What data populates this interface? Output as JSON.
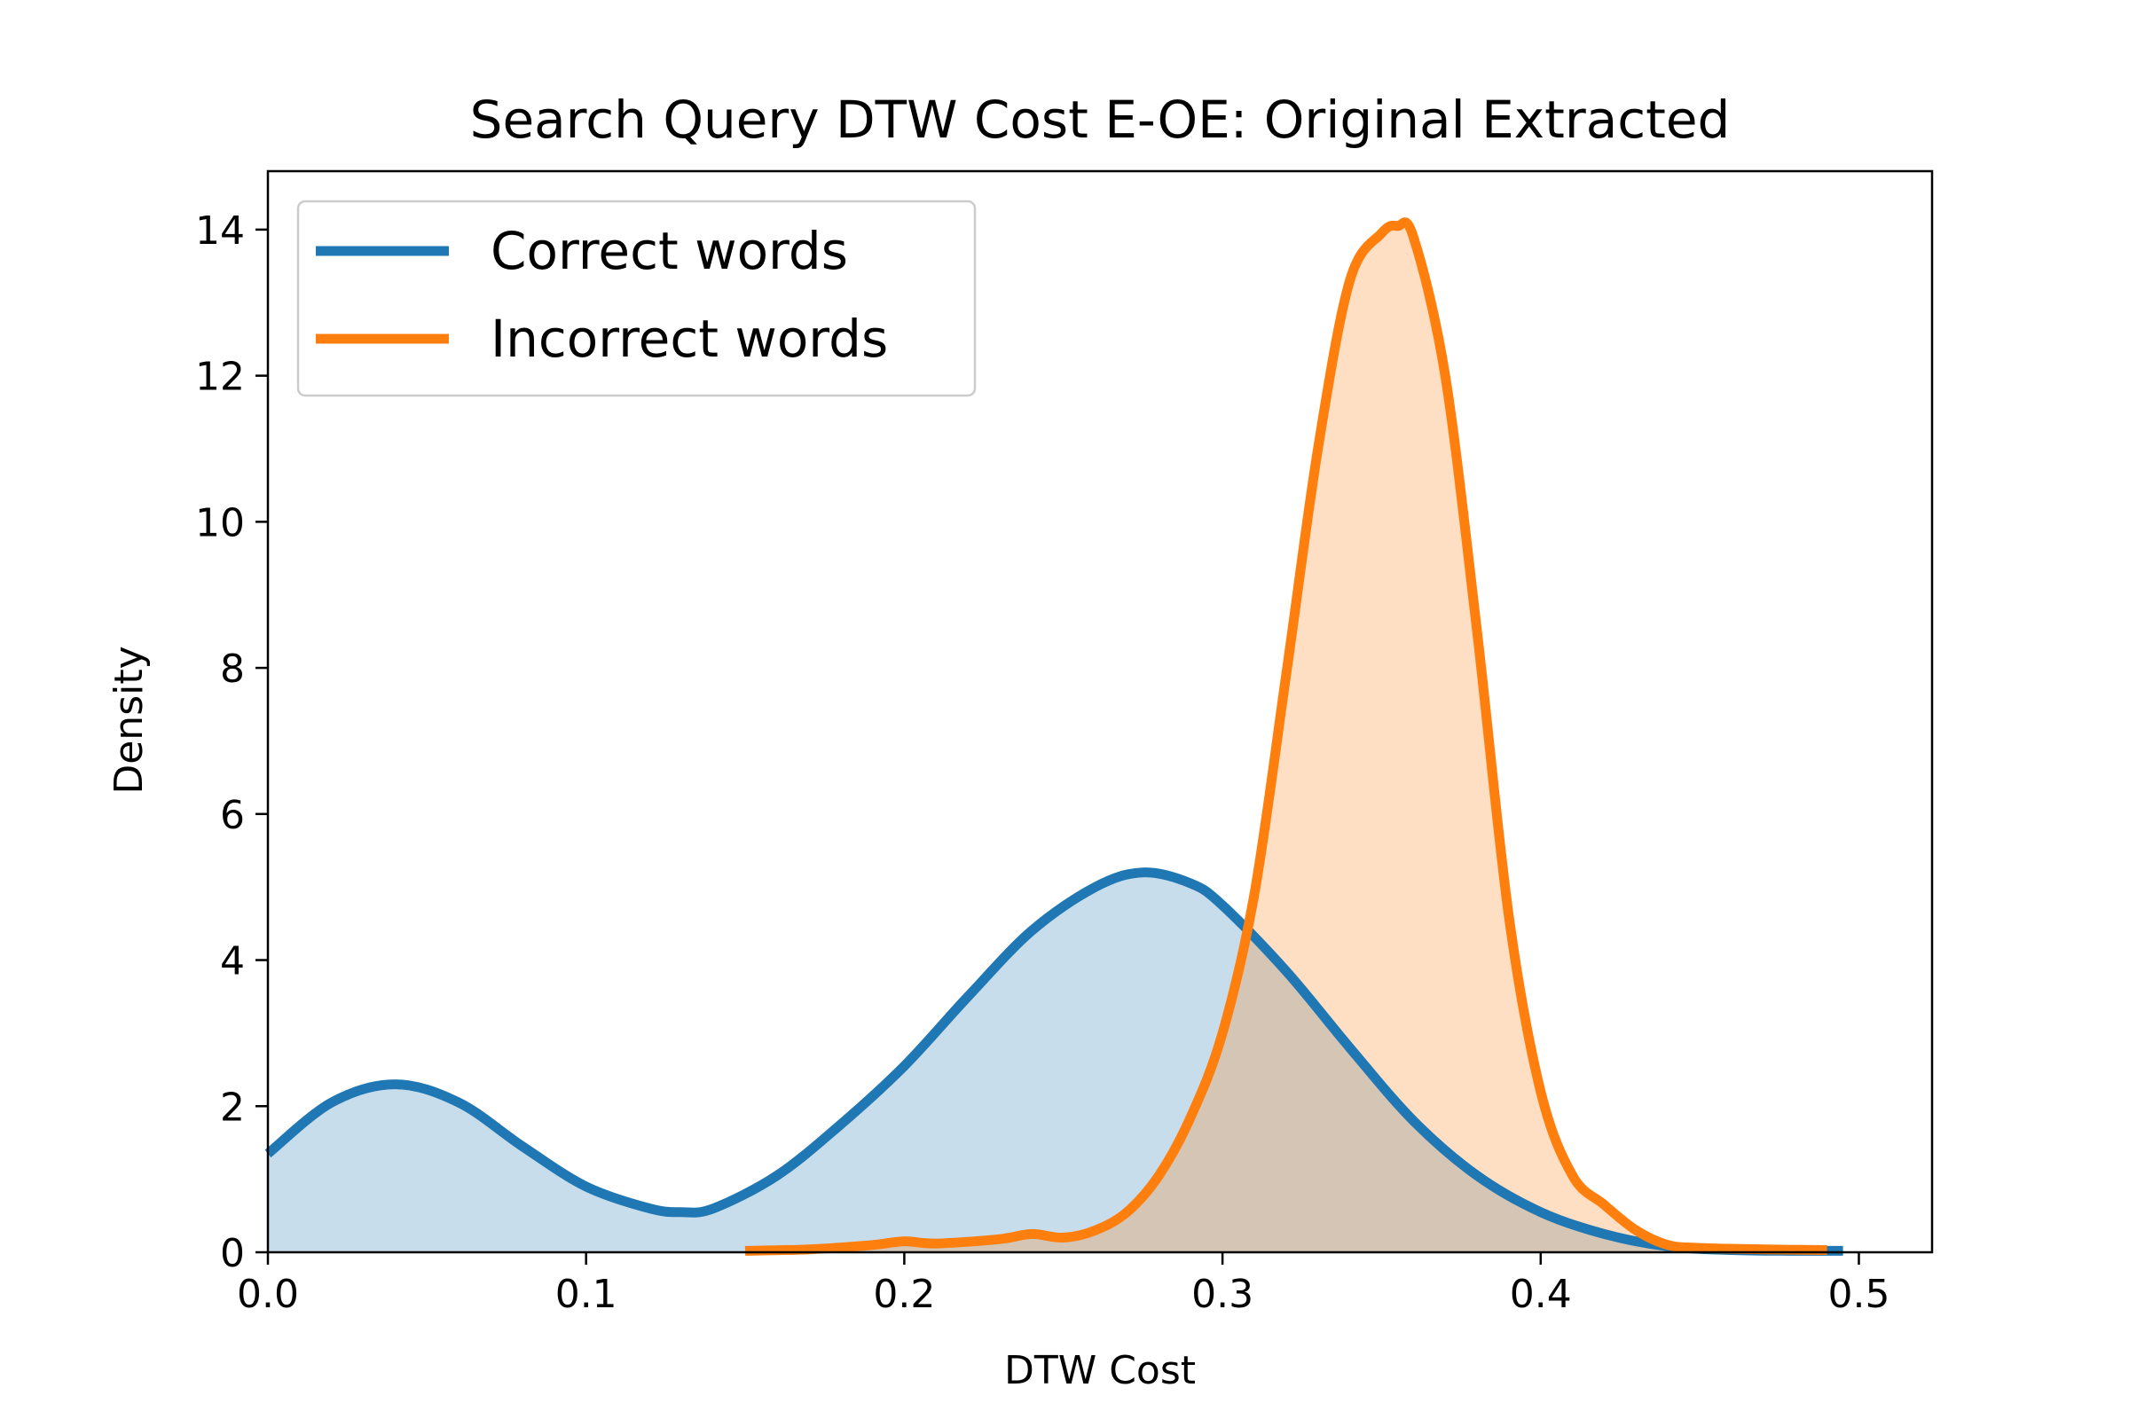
{
  "chart_data": {
    "type": "area",
    "title": "Search Query DTW Cost E-OE: Original Extracted",
    "xlabel": "DTW Cost",
    "ylabel": "Density",
    "xlim": [
      0.0,
      0.523
    ],
    "ylim": [
      0,
      14.8
    ],
    "xticks": [
      "0.0",
      "0.1",
      "0.2",
      "0.3",
      "0.4",
      "0.5"
    ],
    "yticks": [
      "0",
      "2",
      "4",
      "6",
      "8",
      "10",
      "12",
      "14"
    ],
    "grid": false,
    "legend_position": "top-left",
    "series": [
      {
        "name": "Correct words",
        "color": "#1f77b4",
        "fill": "#c5daeb",
        "x": [
          0.0,
          0.02,
          0.04,
          0.06,
          0.08,
          0.1,
          0.12,
          0.13,
          0.14,
          0.16,
          0.18,
          0.2,
          0.22,
          0.24,
          0.26,
          0.275,
          0.29,
          0.3,
          0.32,
          0.34,
          0.36,
          0.38,
          0.4,
          0.42,
          0.44,
          0.46,
          0.48,
          0.495
        ],
        "y": [
          1.35,
          2.05,
          2.3,
          2.05,
          1.45,
          0.9,
          0.6,
          0.55,
          0.6,
          1.05,
          1.75,
          2.55,
          3.5,
          4.4,
          5.0,
          5.2,
          5.05,
          4.75,
          3.85,
          2.8,
          1.8,
          1.05,
          0.55,
          0.25,
          0.08,
          0.03,
          0.02,
          0.02
        ]
      },
      {
        "name": "Incorrect words",
        "color": "#ff7f0e",
        "fill": "#fedec2",
        "x": [
          0.15,
          0.17,
          0.19,
          0.2,
          0.21,
          0.23,
          0.24,
          0.25,
          0.26,
          0.27,
          0.28,
          0.29,
          0.3,
          0.31,
          0.32,
          0.33,
          0.34,
          0.35,
          0.355,
          0.36,
          0.37,
          0.38,
          0.39,
          0.4,
          0.41,
          0.42,
          0.43,
          0.44,
          0.45,
          0.47,
          0.49
        ],
        "y": [
          0.02,
          0.04,
          0.1,
          0.15,
          0.12,
          0.18,
          0.25,
          0.2,
          0.3,
          0.55,
          1.05,
          1.85,
          3.0,
          4.9,
          7.9,
          11.0,
          13.3,
          13.95,
          14.05,
          13.9,
          12.0,
          8.5,
          4.6,
          2.2,
          1.05,
          0.65,
          0.3,
          0.1,
          0.06,
          0.04,
          0.03
        ]
      }
    ]
  }
}
